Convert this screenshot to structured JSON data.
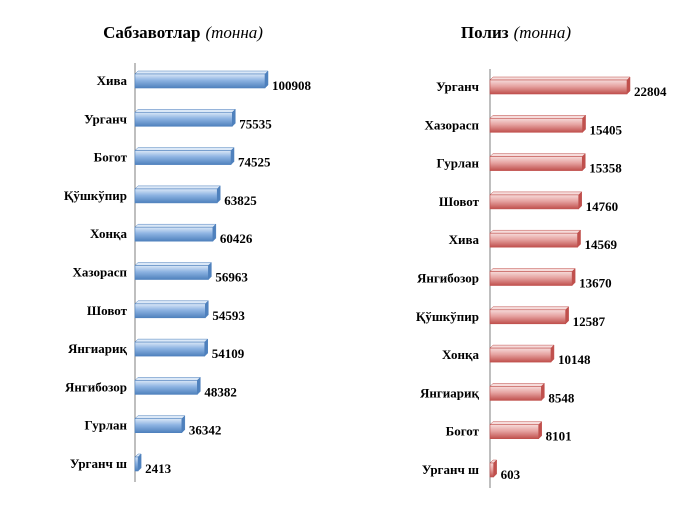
{
  "chart_data": [
    {
      "type": "bar",
      "orientation": "horizontal",
      "title": "Сабзавотлар",
      "unit": "(тонна)",
      "categories": [
        "Хива",
        "Урганч",
        "Богот",
        "Қўшкўпир",
        "Хонқа",
        "Хазорасп",
        "Шовот",
        "Янгиариқ",
        "Янгибозор",
        "Гурлан",
        "Урганч ш"
      ],
      "values": [
        100908,
        75535,
        74525,
        63825,
        60426,
        56963,
        54593,
        54109,
        48382,
        36342,
        2413
      ],
      "value_labels": [
        "100908",
        "75535",
        "74525",
        "63825",
        "60426",
        "56963",
        "54593",
        "54109",
        "48382",
        "36342",
        "2413"
      ],
      "xlim": [
        0,
        100908
      ],
      "grid": false,
      "legend": "none",
      "color": "#8db3e2",
      "color_dark": "#4f81bd",
      "color_light": "#dbe8f7"
    },
    {
      "type": "bar",
      "orientation": "horizontal",
      "title": "Полиз",
      "unit": "(тонна)",
      "categories": [
        "Урганч",
        "Хазорасп",
        "Гурлан",
        "Шовот",
        "Хива",
        "Янгибозор",
        "Қўшкўпир",
        "Хонқа",
        "Янгиариқ",
        "Богот",
        "Урганч ш"
      ],
      "values": [
        22804,
        15405,
        15358,
        14760,
        14569,
        13670,
        12587,
        10148,
        8548,
        8101,
        603
      ],
      "value_labels": [
        "22804",
        "15405",
        "15358",
        "14760",
        "14569",
        "13670",
        "12587",
        "10148",
        "8548",
        "8101",
        "603"
      ],
      "xlim": [
        0,
        22804
      ],
      "grid": false,
      "legend": "none",
      "color": "#e6a3a1",
      "color_dark": "#c0504d",
      "color_light": "#f6dcdb"
    }
  ]
}
